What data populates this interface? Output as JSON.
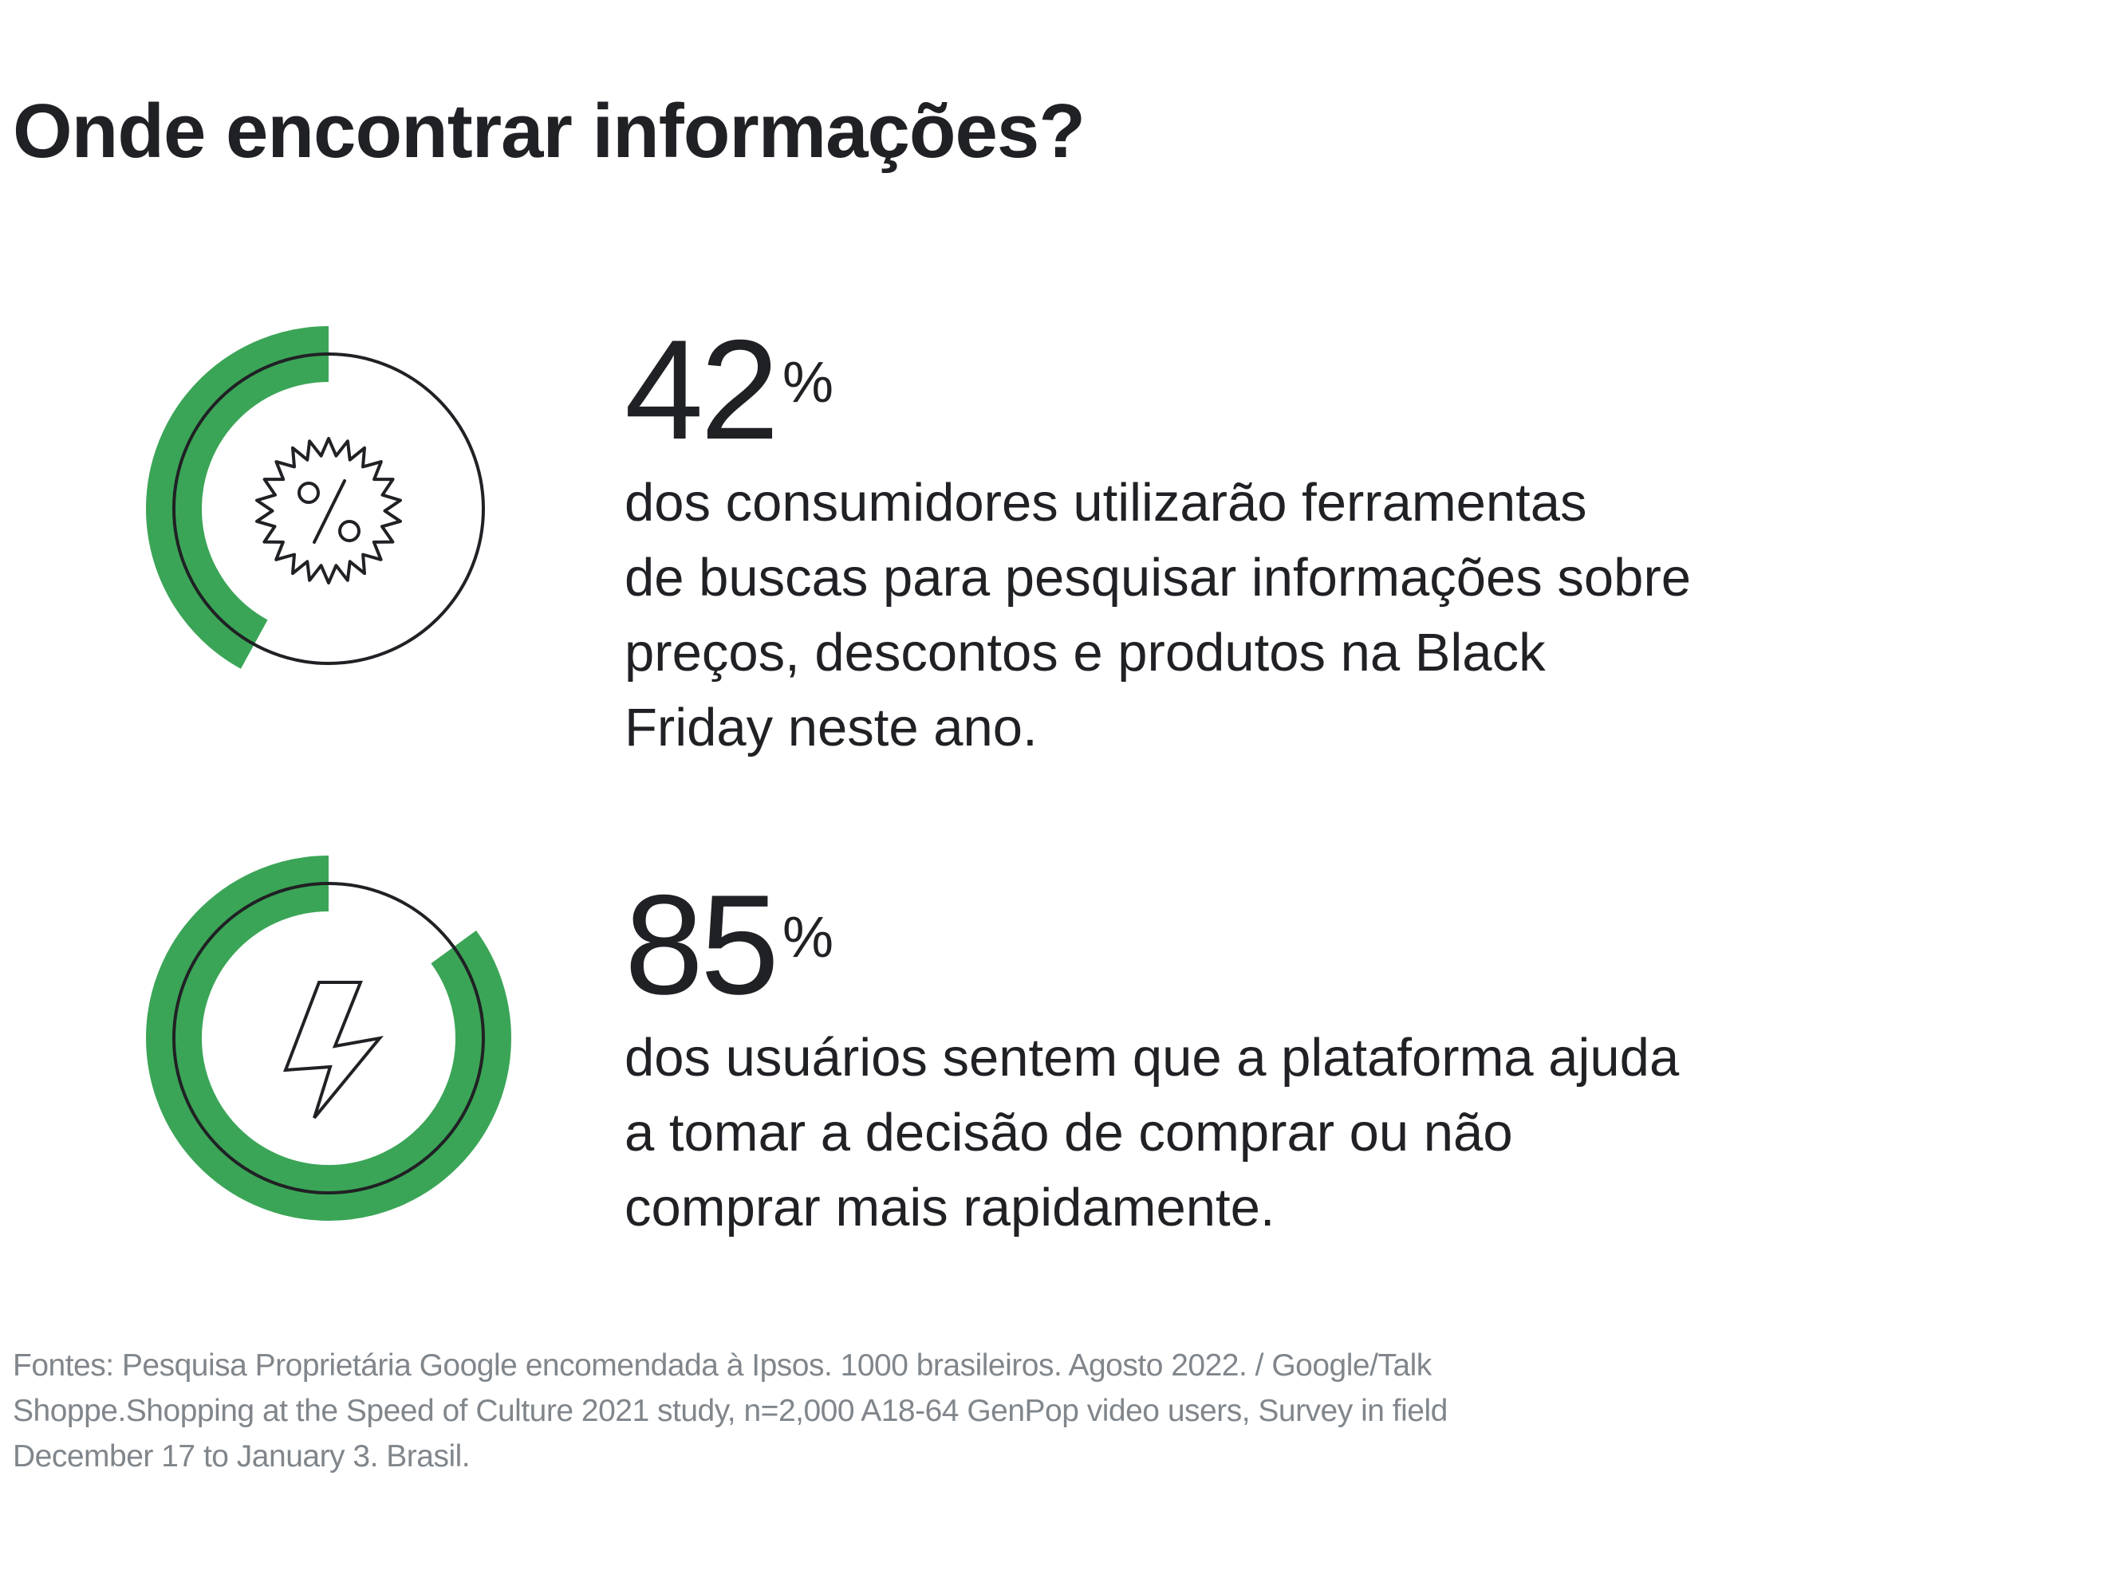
{
  "title": "Onde encontrar informações?",
  "colors": {
    "accent": "#3ba557",
    "text": "#202124",
    "muted": "#80868b"
  },
  "stats": [
    {
      "value": "42",
      "unit": "%",
      "percent": 42,
      "icon": "discount-badge-icon",
      "text": "dos consumidores utilizarão ferramentas\nde buscas para pesquisar informações sobre\npreços, descontos e produtos na Black\nFriday neste ano."
    },
    {
      "value": "85",
      "unit": "%",
      "percent": 85,
      "icon": "lightning-bolt-icon",
      "text": "dos usuários sentem que a plataforma ajuda\na tomar a decisão de comprar ou não\ncomprar mais rapidamente."
    }
  ],
  "sources": "Fontes: Pesquisa Proprietária Google encomendada à Ipsos.  1000 brasileiros. Agosto 2022. / Google/Talk\nShoppe.Shopping at the Speed of Culture 2021 study, n=2,000 A18-64 GenPop video users, Survey in field\nDecember 17 to January 3. Brasil."
}
